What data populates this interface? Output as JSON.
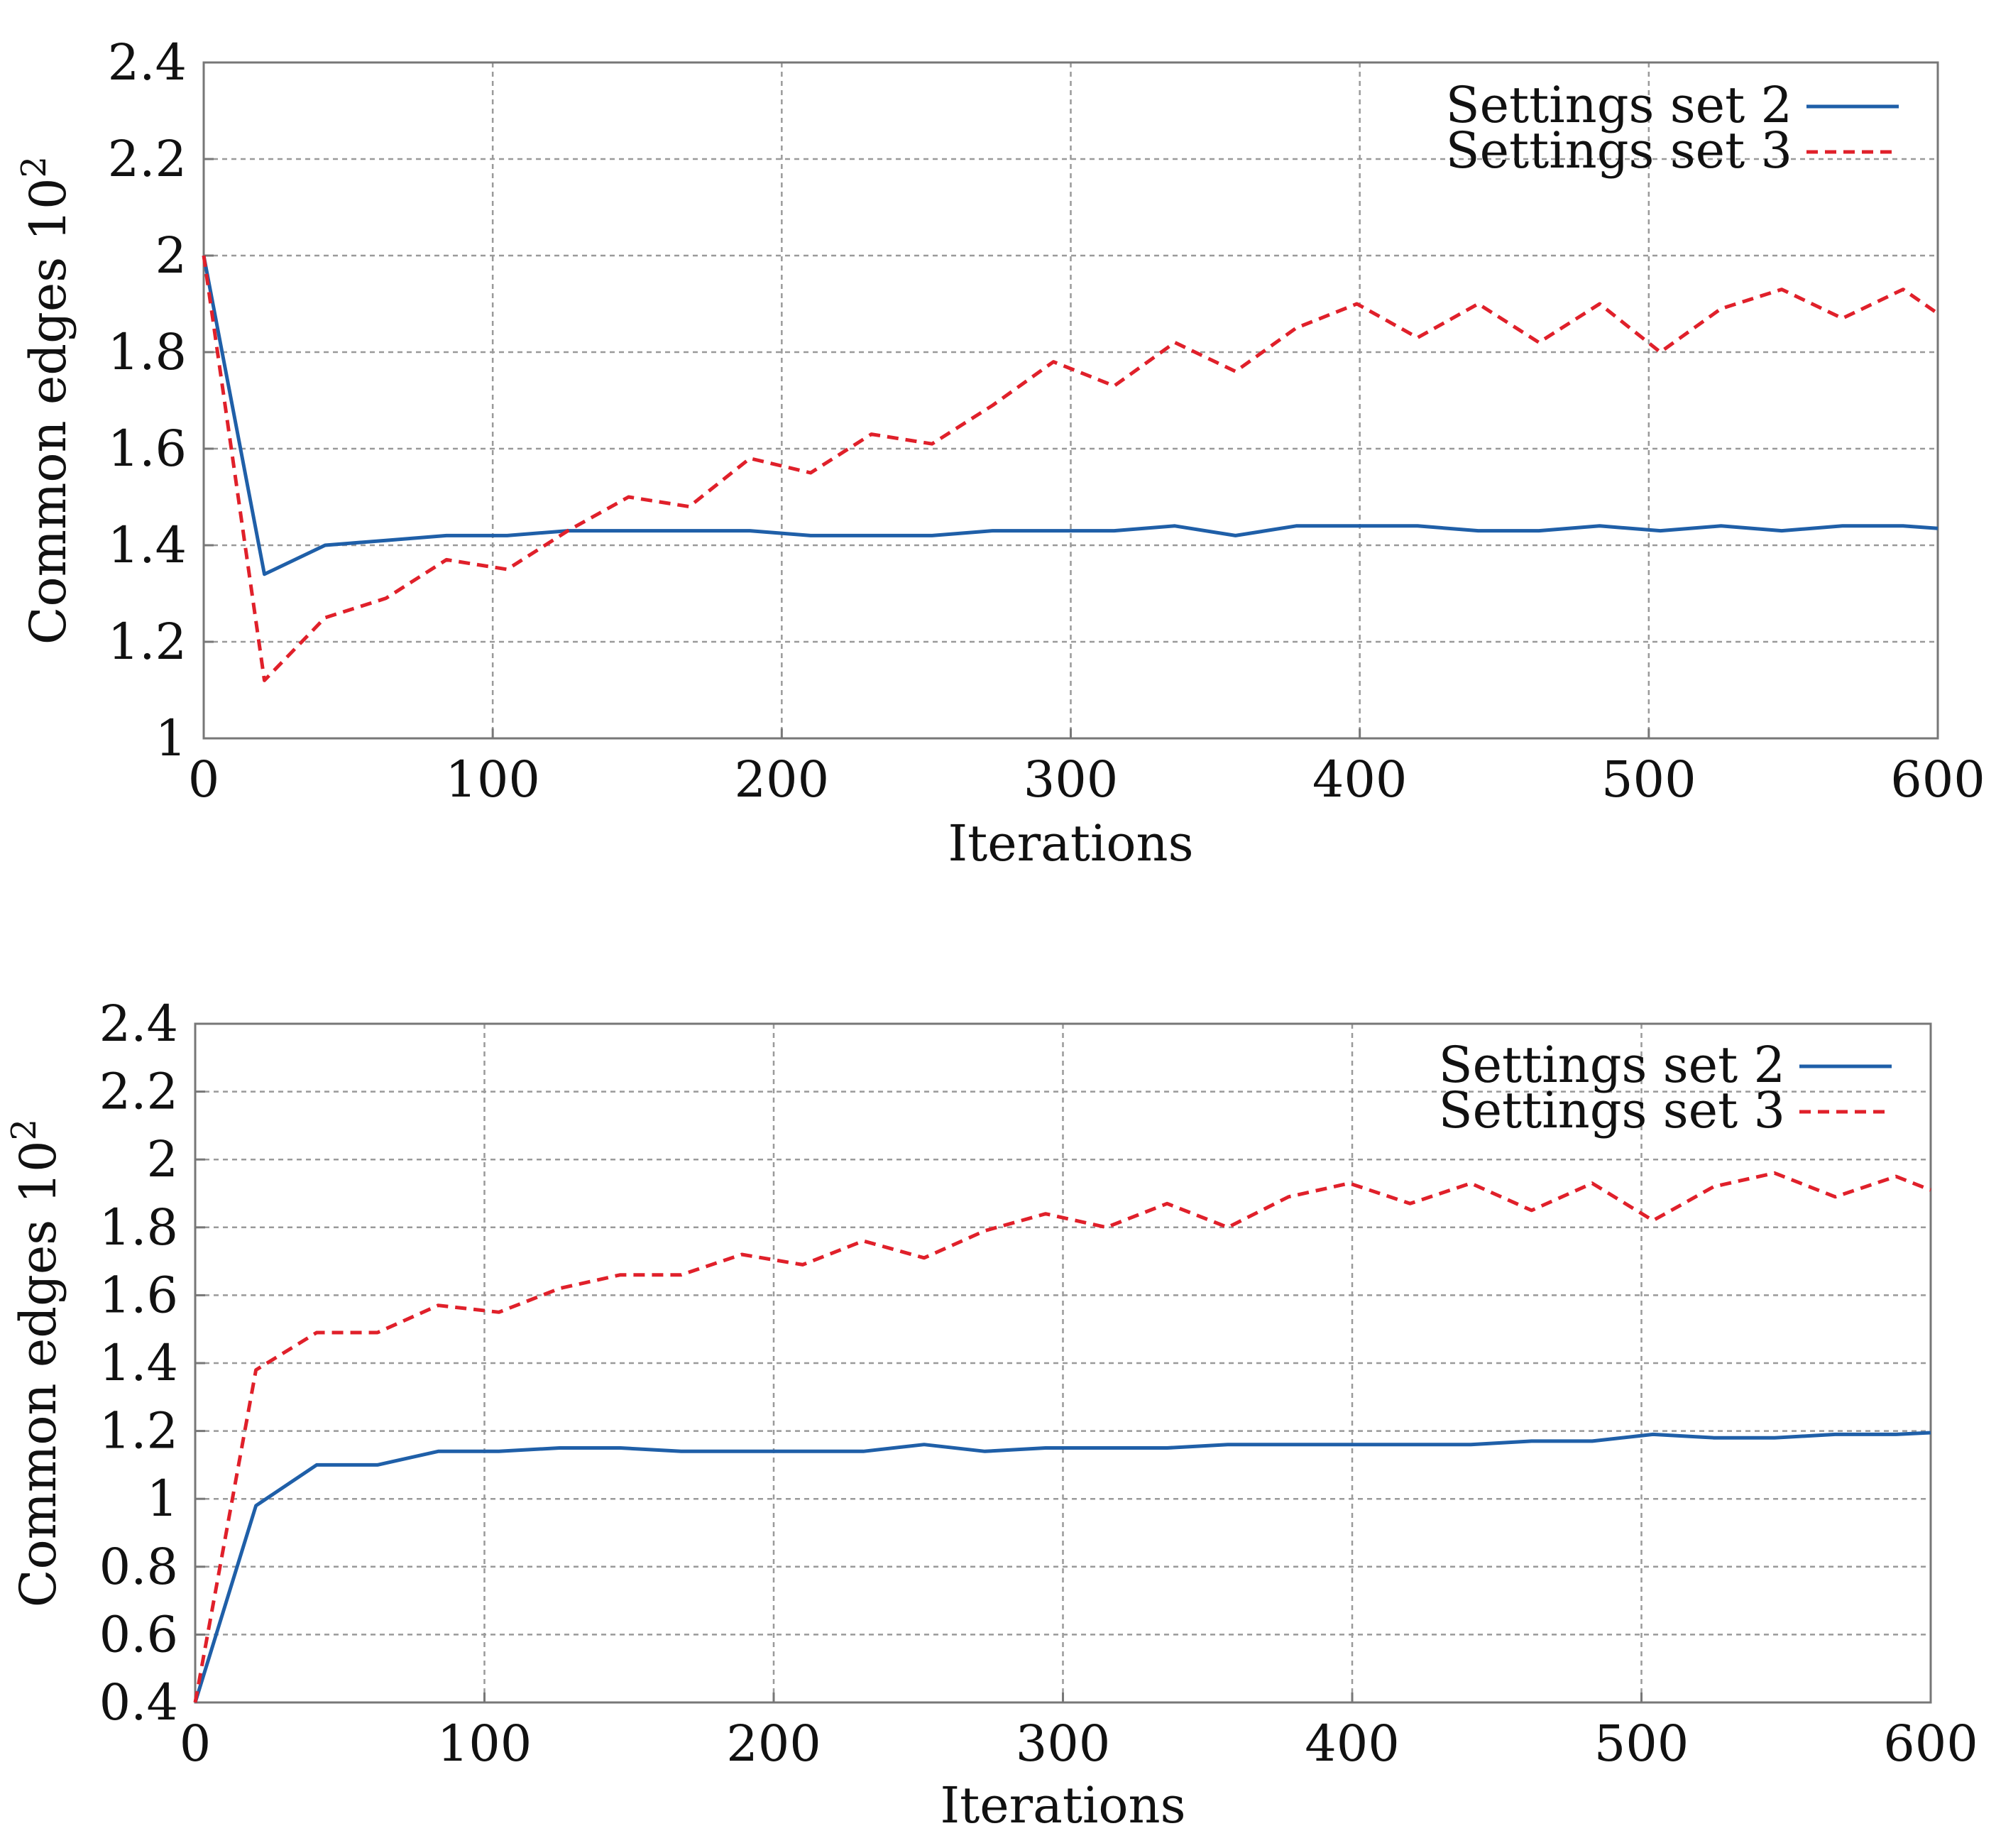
{
  "colors": {
    "settings2": "#1f5fa8",
    "settings3": "#e0202a",
    "grid": "#9a9a9a",
    "axis": "#777777"
  },
  "chart_data": [
    {
      "type": "line",
      "title": "",
      "xlabel": "Iterations",
      "ylabel": "Common edges 10",
      "ylabel_exp": "2",
      "xlim": [
        0,
        600
      ],
      "ylim": [
        1,
        2.4
      ],
      "xticks": [
        0,
        100,
        200,
        300,
        400,
        500,
        600
      ],
      "xtick_labels": [
        "0",
        "100",
        "200",
        "300",
        "400",
        "500",
        "600"
      ],
      "yticks": [
        1,
        1.2,
        1.4,
        1.6,
        1.8,
        2,
        2.2,
        2.4
      ],
      "ytick_labels": [
        "1",
        "1.2",
        "1.4",
        "1.6",
        "1.8",
        "2",
        "2.2",
        "2.4"
      ],
      "grid": true,
      "legend": "top-right",
      "x": [
        0,
        21,
        42,
        63,
        84,
        105,
        126,
        147,
        168,
        189,
        210,
        231,
        252,
        273,
        294,
        315,
        336,
        357,
        378,
        399,
        420,
        441,
        462,
        483,
        504,
        525,
        546,
        567,
        588,
        600
      ],
      "series": [
        {
          "name": "Settings set 2",
          "style": "solid",
          "values": [
            2.0,
            1.34,
            1.4,
            1.41,
            1.42,
            1.42,
            1.43,
            1.43,
            1.43,
            1.43,
            1.42,
            1.42,
            1.42,
            1.43,
            1.43,
            1.43,
            1.44,
            1.42,
            1.44,
            1.44,
            1.44,
            1.43,
            1.43,
            1.44,
            1.43,
            1.44,
            1.43,
            1.44,
            1.44,
            1.435
          ]
        },
        {
          "name": "Settings set 3",
          "style": "dashed",
          "values": [
            2.0,
            1.12,
            1.25,
            1.29,
            1.37,
            1.35,
            1.43,
            1.5,
            1.48,
            1.58,
            1.55,
            1.63,
            1.61,
            1.69,
            1.78,
            1.73,
            1.82,
            1.76,
            1.85,
            1.9,
            1.83,
            1.9,
            1.82,
            1.9,
            1.8,
            1.89,
            1.93,
            1.87,
            1.93,
            1.88
          ]
        }
      ]
    },
    {
      "type": "line",
      "title": "",
      "xlabel": "Iterations",
      "ylabel": "Common edges 10",
      "ylabel_exp": "2",
      "xlim": [
        0,
        600
      ],
      "ylim": [
        0.4,
        2.4
      ],
      "xticks": [
        0,
        100,
        200,
        300,
        400,
        500,
        600
      ],
      "xtick_labels": [
        "0",
        "100",
        "200",
        "300",
        "400",
        "500",
        "600"
      ],
      "yticks": [
        0.4,
        0.6,
        0.8,
        1,
        1.2,
        1.4,
        1.6,
        1.8,
        2,
        2.2,
        2.4
      ],
      "ytick_labels": [
        "0.4",
        "0.6",
        "0.8",
        "1",
        "1.2",
        "1.4",
        "1.6",
        "1.8",
        "2",
        "2.2",
        "2.4"
      ],
      "grid": true,
      "legend": "top-right",
      "x": [
        0,
        21,
        42,
        63,
        84,
        105,
        126,
        147,
        168,
        189,
        210,
        231,
        252,
        273,
        294,
        315,
        336,
        357,
        378,
        399,
        420,
        441,
        462,
        483,
        504,
        525,
        546,
        567,
        588,
        600
      ],
      "series": [
        {
          "name": "Settings set 2",
          "style": "solid",
          "values": [
            0.4,
            0.98,
            1.1,
            1.1,
            1.14,
            1.14,
            1.15,
            1.15,
            1.14,
            1.14,
            1.14,
            1.14,
            1.16,
            1.14,
            1.15,
            1.15,
            1.15,
            1.16,
            1.16,
            1.16,
            1.16,
            1.16,
            1.17,
            1.17,
            1.19,
            1.18,
            1.18,
            1.19,
            1.19,
            1.195
          ]
        },
        {
          "name": "Settings set 3",
          "style": "dashed",
          "values": [
            0.4,
            1.38,
            1.49,
            1.49,
            1.57,
            1.55,
            1.62,
            1.66,
            1.66,
            1.72,
            1.69,
            1.76,
            1.71,
            1.79,
            1.84,
            1.8,
            1.87,
            1.8,
            1.89,
            1.93,
            1.87,
            1.93,
            1.85,
            1.93,
            1.82,
            1.92,
            1.96,
            1.89,
            1.95,
            1.91
          ]
        }
      ]
    }
  ]
}
